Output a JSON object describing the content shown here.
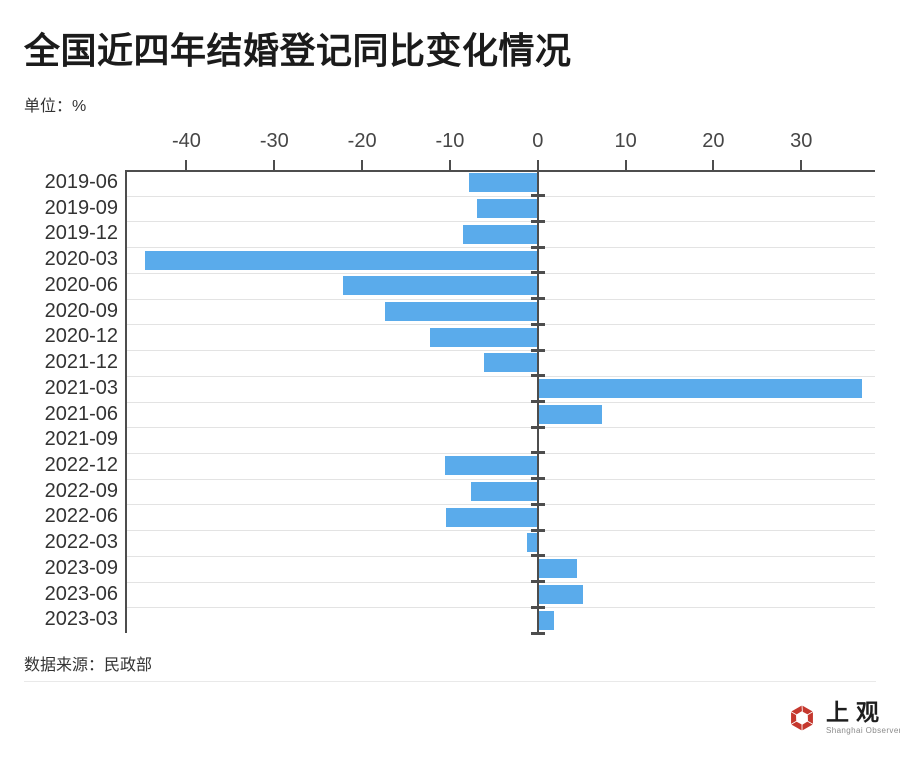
{
  "page": {
    "title": "全国近四年结婚登记同比变化情况",
    "unit_label": "单位：%",
    "source_label": "数据来源：民政部"
  },
  "logo": {
    "name_cn": "上观",
    "name_en": "Shanghai Observer",
    "red": "#c5382e"
  },
  "chart_data": {
    "type": "bar",
    "orientation": "horizontal",
    "title": "全国近四年结婚登记同比变化情况",
    "unit": "%",
    "categories": [
      "2019-06",
      "2019-09",
      "2019-12",
      "2020-03",
      "2020-06",
      "2020-09",
      "2020-12",
      "2021-12",
      "2021-03",
      "2021-06",
      "2021-09",
      "2022-12",
      "2022-09",
      "2022-06",
      "2022-03",
      "2023-09",
      "2023-06",
      "2023-03"
    ],
    "values": [
      -7.8,
      -6.9,
      -8.5,
      -44.7,
      -22.2,
      -17.4,
      -12.3,
      -6.1,
      36.9,
      7.3,
      0,
      -10.6,
      -7.6,
      -10.5,
      -1.2,
      4.5,
      5.2,
      1.8
    ],
    "x_ticks": [
      -40,
      -30,
      -20,
      -10,
      0,
      10,
      20,
      30
    ],
    "xlim": [
      -47,
      38.4
    ],
    "bar_color": "#5aabeb",
    "axis_color": "#4d4d4d",
    "grid": true,
    "legend": "none",
    "source": "民政部"
  }
}
